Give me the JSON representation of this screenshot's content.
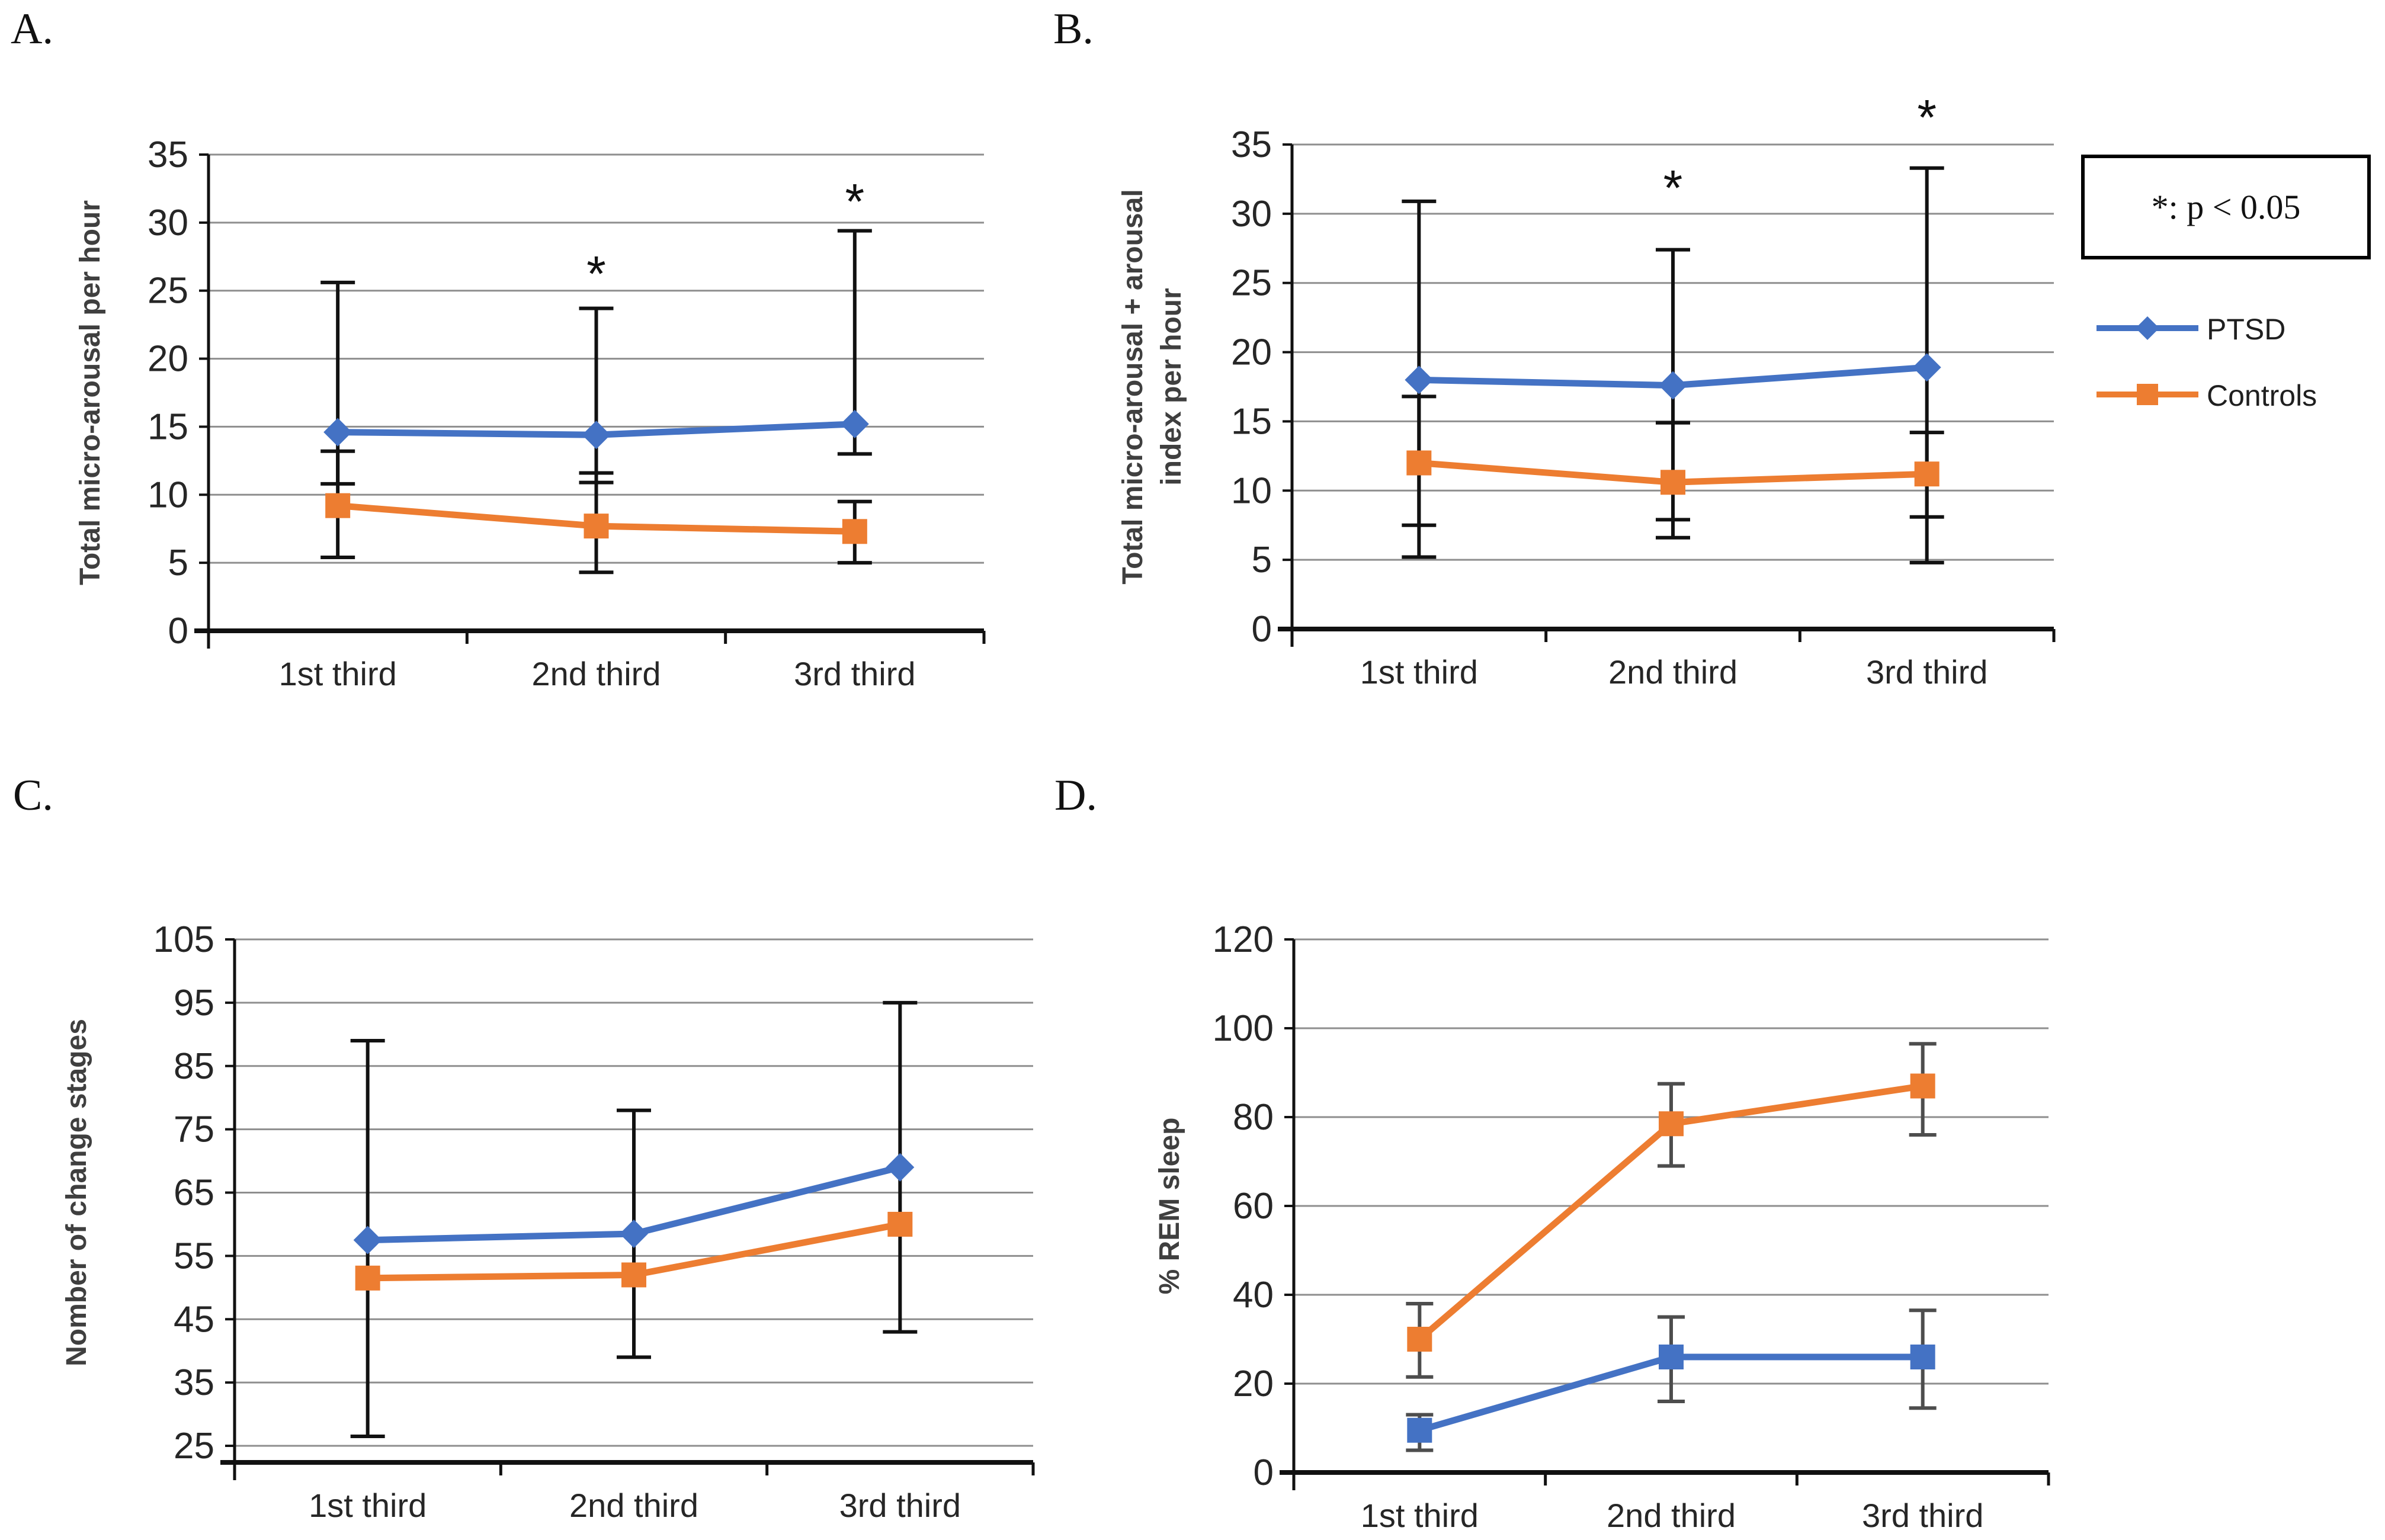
{
  "figure": {
    "legend_box_label": "*: p < 0.05",
    "legend": [
      {
        "name": "PTSD",
        "color": "#4472C4",
        "marker": "diamond"
      },
      {
        "name": "Controls",
        "color": "#ED7D31",
        "marker": "square"
      }
    ],
    "colors": {
      "ptsd_blue": "#4472C4",
      "controls_orange": "#ED7D31",
      "gridline_gray": "#8e8e8e",
      "axis_black": "#111111"
    }
  },
  "chart_data": [
    {
      "id": "A",
      "panel_label": "A.",
      "type": "line",
      "ylabel": "Total micro-arousal per hour",
      "ylabel_lines": [
        "Total micro-arousal per hour"
      ],
      "categories": [
        "1st third",
        "2nd third",
        "3rd third"
      ],
      "ylim": [
        0,
        35
      ],
      "yticks": [
        0,
        5,
        10,
        15,
        20,
        25,
        30,
        35
      ],
      "grid": true,
      "legend_position": "none",
      "error_bar_color": "#111111",
      "series": [
        {
          "name": "PTSD",
          "color": "#4472C4",
          "marker": "diamond",
          "values": [
            14.6,
            14.4,
            15.2
          ],
          "err_low": [
            10.8,
            10.9,
            13.0
          ],
          "err_high": [
            25.6,
            23.7,
            29.4
          ]
        },
        {
          "name": "Controls",
          "color": "#ED7D31",
          "marker": "square",
          "values": [
            9.2,
            7.7,
            7.3
          ],
          "err_low": [
            5.4,
            4.3,
            5.0
          ],
          "err_high": [
            13.2,
            11.6,
            9.5
          ]
        }
      ],
      "annotations": [
        {
          "category_index": 1,
          "y": 27.0,
          "text": "*"
        },
        {
          "category_index": 2,
          "y": 32.3,
          "text": "*"
        }
      ]
    },
    {
      "id": "B",
      "panel_label": "B.",
      "type": "line",
      "ylabel": "Total micro-arousal + arousal index per hour",
      "ylabel_lines": [
        "Total micro-arousal + arousal",
        "index per hour"
      ],
      "categories": [
        "1st third",
        "2nd third",
        "3rd third"
      ],
      "ylim": [
        0,
        35
      ],
      "yticks": [
        0,
        5,
        10,
        15,
        20,
        25,
        30,
        35
      ],
      "grid": true,
      "legend_position": "right",
      "error_bar_color": "#111111",
      "series": [
        {
          "name": "PTSD",
          "color": "#4472C4",
          "marker": "diamond",
          "values": [
            18.0,
            17.6,
            18.9
          ],
          "err_low": [
            5.2,
            6.6,
            4.8
          ],
          "err_high": [
            30.9,
            27.4,
            33.3
          ]
        },
        {
          "name": "Controls",
          "color": "#ED7D31",
          "marker": "square",
          "values": [
            12.0,
            10.6,
            11.2
          ],
          "err_low": [
            7.5,
            7.9,
            8.1
          ],
          "err_high": [
            16.8,
            14.9,
            14.2
          ]
        }
      ],
      "annotations": [
        {
          "category_index": 1,
          "y": 32.6,
          "text": "*"
        },
        {
          "category_index": 2,
          "y": 37.7,
          "text": "*"
        }
      ]
    },
    {
      "id": "C",
      "panel_label": "C.",
      "type": "line",
      "ylabel": "Nomber of change stages",
      "ylabel_lines": [
        "Nomber of change stages"
      ],
      "categories": [
        "1st third",
        "2nd third",
        "3rd third"
      ],
      "ylim": [
        25,
        105
      ],
      "yticks": [
        25,
        35,
        45,
        55,
        65,
        75,
        85,
        95,
        105
      ],
      "grid": true,
      "legend_position": "none",
      "error_bar_color": "#111111",
      "series": [
        {
          "name": "PTSD",
          "color": "#4472C4",
          "marker": "diamond",
          "values": [
            57.5,
            58.5,
            69.0
          ],
          "err_low": [
            26.5,
            39.0,
            43.0
          ],
          "err_high": [
            89.0,
            78.0,
            95.0
          ]
        },
        {
          "name": "Controls",
          "color": "#ED7D31",
          "marker": "square",
          "values": [
            51.5,
            52.0,
            60.0
          ]
        }
      ],
      "annotations": []
    },
    {
      "id": "D",
      "panel_label": "D.",
      "type": "line",
      "ylabel": "% REM sleep",
      "ylabel_lines": [
        "% REM sleep"
      ],
      "categories": [
        "1st third",
        "2nd third",
        "3rd third"
      ],
      "ylim": [
        0,
        120
      ],
      "yticks": [
        0,
        20,
        40,
        60,
        80,
        100,
        120
      ],
      "grid": true,
      "legend_position": "none",
      "error_bar_color": "#4d4d4d",
      "series": [
        {
          "name": "PTSD",
          "color": "#4472C4",
          "marker": "square",
          "values": [
            9.5,
            26.0,
            26.0
          ],
          "err_low": [
            5.0,
            16.0,
            14.5
          ],
          "err_high": [
            13.0,
            35.0,
            36.5
          ]
        },
        {
          "name": "Controls",
          "color": "#ED7D31",
          "marker": "square",
          "values": [
            30.0,
            78.5,
            87.0
          ],
          "err_low": [
            21.5,
            69.0,
            76.0
          ],
          "err_high": [
            38.0,
            87.5,
            96.5
          ]
        }
      ],
      "annotations": []
    }
  ]
}
